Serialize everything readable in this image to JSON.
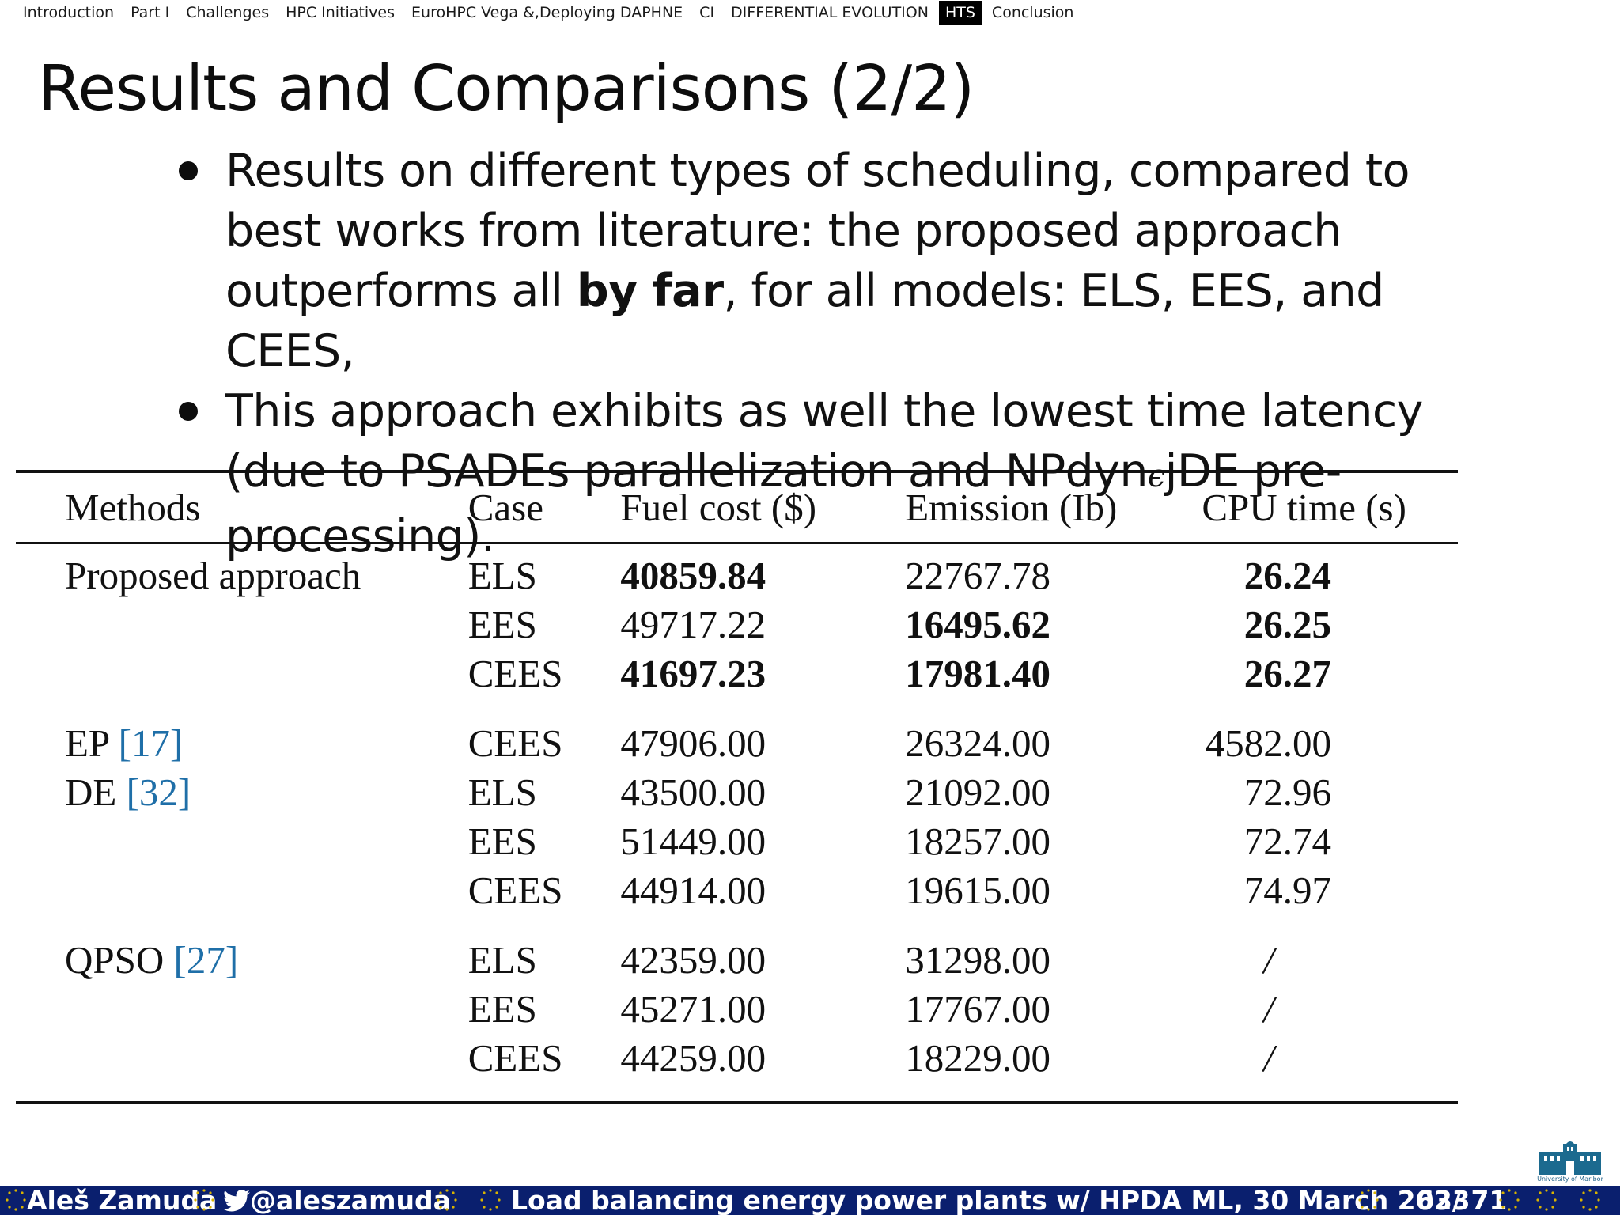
{
  "nav": {
    "items": [
      {
        "label": "Introduction",
        "active": false
      },
      {
        "label": "Part I",
        "active": false
      },
      {
        "label": "Challenges",
        "active": false
      },
      {
        "label": "HPC Initiatives",
        "active": false
      },
      {
        "label": "EuroHPC Vega &,Deploying DAPHNE",
        "active": false
      },
      {
        "label": "CI",
        "active": false
      },
      {
        "label": "DIFFERENTIAL EVOLUTION",
        "active": false
      },
      {
        "label": "HTS",
        "active": true
      },
      {
        "label": "Conclusion",
        "active": false
      }
    ]
  },
  "slide": {
    "title": "Results and Comparisons (2/2)",
    "bullets": [
      {
        "part1": "Results on different types of scheduling, compared to best works from literature: the proposed approach outperforms all ",
        "bold": "by far",
        "part2": ", for all models: ELS, EES, and CEES,"
      },
      {
        "part1": "This approach exhibits as well the lowest time latency (due to PSADEs parallelization and NPdyn",
        "epsilon": "ϵ",
        "part2": "jDE pre-processing)."
      }
    ]
  },
  "table": {
    "headers": [
      "Methods",
      "Case",
      "Fuel cost ($)",
      "Emission (Ib)",
      "CPU time (s)"
    ],
    "groups": [
      {
        "rows": [
          {
            "method": "Proposed approach",
            "ref": "",
            "case": "ELS",
            "fuel": "40859.84",
            "fuel_bold": true,
            "emission": "22767.78",
            "emission_bold": false,
            "cpu": "26.24",
            "cpu_bold": true
          },
          {
            "method": "",
            "ref": "",
            "case": "EES",
            "fuel": "49717.22",
            "fuel_bold": false,
            "emission": "16495.62",
            "emission_bold": true,
            "cpu": "26.25",
            "cpu_bold": true
          },
          {
            "method": "",
            "ref": "",
            "case": "CEES",
            "fuel": "41697.23",
            "fuel_bold": true,
            "emission": "17981.40",
            "emission_bold": true,
            "cpu": "26.27",
            "cpu_bold": true
          }
        ]
      },
      {
        "rows": [
          {
            "method": "EP ",
            "ref": "[17]",
            "case": "CEES",
            "fuel": "47906.00",
            "fuel_bold": false,
            "emission": "26324.00",
            "emission_bold": false,
            "cpu": "4582.00",
            "cpu_bold": false
          },
          {
            "method": "DE ",
            "ref": "[32]",
            "case": "ELS",
            "fuel": "43500.00",
            "fuel_bold": false,
            "emission": "21092.00",
            "emission_bold": false,
            "cpu": "72.96",
            "cpu_bold": false
          },
          {
            "method": "",
            "ref": "",
            "case": "EES",
            "fuel": "51449.00",
            "fuel_bold": false,
            "emission": "18257.00",
            "emission_bold": false,
            "cpu": "72.74",
            "cpu_bold": false
          },
          {
            "method": "",
            "ref": "",
            "case": "CEES",
            "fuel": "44914.00",
            "fuel_bold": false,
            "emission": "19615.00",
            "emission_bold": false,
            "cpu": "74.97",
            "cpu_bold": false
          }
        ]
      },
      {
        "rows": [
          {
            "method": "QPSO ",
            "ref": "[27]",
            "case": "ELS",
            "fuel": "42359.00",
            "fuel_bold": false,
            "emission": "31298.00",
            "emission_bold": false,
            "cpu": "/",
            "cpu_bold": false
          },
          {
            "method": "",
            "ref": "",
            "case": "EES",
            "fuel": "45271.00",
            "fuel_bold": false,
            "emission": "17767.00",
            "emission_bold": false,
            "cpu": "/",
            "cpu_bold": false
          },
          {
            "method": "",
            "ref": "",
            "case": "CEES",
            "fuel": "44259.00",
            "fuel_bold": false,
            "emission": "18229.00",
            "emission_bold": false,
            "cpu": "/",
            "cpu_bold": false
          }
        ]
      }
    ],
    "ref_color": "#1f6fa8"
  },
  "logo": {
    "text": "University of Maribor",
    "color": "#1c5e86",
    "icon": "university-building-icon"
  },
  "footer": {
    "author": "Aleš Zamuda",
    "twitter_icon": "twitter-bird-icon",
    "handle": "@aleszamuda",
    "talk": "Load balancing energy power plants w/ HPDA ML, 30 March 2023",
    "page": "63/ 71",
    "background": "#0a1f6e",
    "decoration": "eu-stars-icon"
  }
}
